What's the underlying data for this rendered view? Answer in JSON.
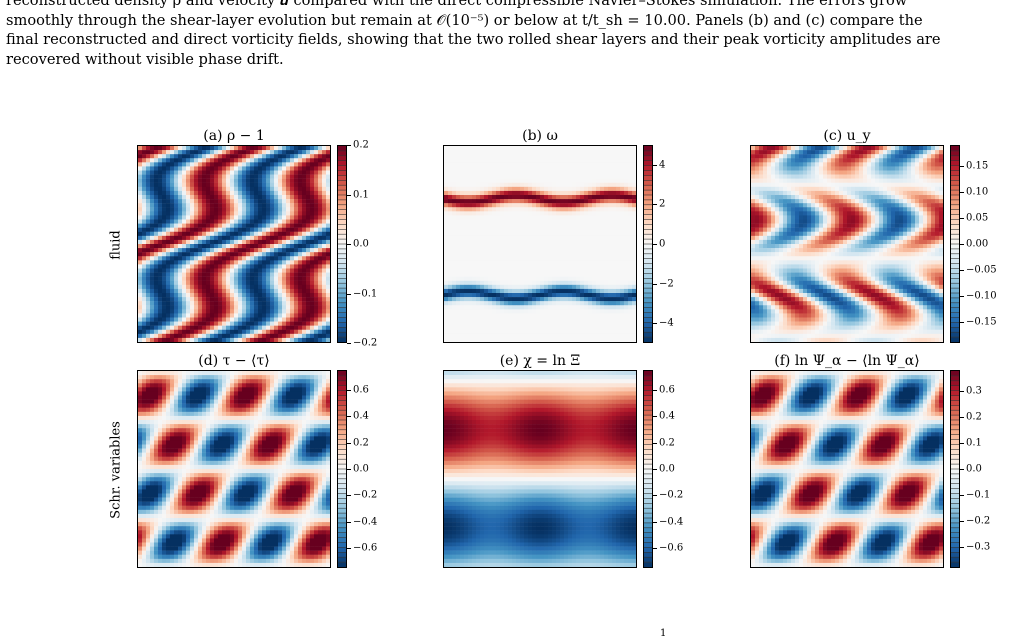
{
  "caption": {
    "lines": [
      "reconstructed density ρ and velocity 𝒖 compared with the direct compressible Navier–Stokes simulation. The errors grow",
      "smoothly through the shear-layer evolution but remain at 𝒪(10⁻⁵) or below at t/t_sh = 10.00. Panels (b) and (c) compare the",
      "final reconstructed and direct vorticity fields, showing that the two rolled shear layers and their peak vorticity amplitudes are",
      "recovered without visible phase drift."
    ]
  },
  "row_labels": [
    "fluid",
    "Schr. variables"
  ],
  "colormap": {
    "name": "RdBu_r",
    "stops": [
      "#053061",
      "#2166ac",
      "#4393c3",
      "#92c5de",
      "#d1e5f0",
      "#f7f7f7",
      "#fddbc7",
      "#f4a582",
      "#d6604d",
      "#b2182b",
      "#67001f"
    ]
  },
  "panels": [
    {
      "title": "(a) ρ − 1",
      "ticks": [
        "0.2",
        "0.1",
        "0.0",
        "−0.1",
        "−0.2"
      ],
      "tick_values": [
        0.2,
        0.1,
        0.0,
        -0.1,
        -0.2
      ],
      "vmin": -0.2,
      "vmax": 0.2,
      "field_kind": "diag_waves"
    },
    {
      "title": "(b) ω",
      "ticks": [
        "4",
        "2",
        "0",
        "−2",
        "−4"
      ],
      "tick_values": [
        4,
        2,
        0,
        -2,
        -4
      ],
      "vmin": -5,
      "vmax": 5,
      "field_kind": "shear_layers"
    },
    {
      "title": "(c) u_y",
      "ticks": [
        "0.15",
        "0.10",
        "0.05",
        "0.00",
        "−0.05",
        "−0.10",
        "−0.15"
      ],
      "tick_values": [
        0.15,
        0.1,
        0.05,
        0.0,
        -0.05,
        -0.1,
        -0.15
      ],
      "vmin": -0.19,
      "vmax": 0.19,
      "field_kind": "wavy"
    },
    {
      "title": "(d) τ − ⟨τ⟩",
      "ticks": [
        "0.6",
        "0.4",
        "0.2",
        "0.0",
        "−0.2",
        "−0.4",
        "−0.6"
      ],
      "tick_values": [
        0.6,
        0.4,
        0.2,
        0.0,
        -0.2,
        -0.4,
        -0.6
      ],
      "vmin": -0.75,
      "vmax": 0.75,
      "field_kind": "checker"
    },
    {
      "title": "(e) χ = ln Ξ",
      "ticks": [
        "0.6",
        "0.4",
        "0.2",
        "0.0",
        "−0.2",
        "−0.4",
        "−0.6"
      ],
      "tick_values": [
        0.6,
        0.4,
        0.2,
        0.0,
        -0.2,
        -0.4,
        -0.6
      ],
      "vmin": -0.75,
      "vmax": 0.75,
      "field_kind": "bands"
    },
    {
      "title": "(f) ln Ψ_α − ⟨ln Ψ_α⟩",
      "ticks": [
        "0.3",
        "0.2",
        "0.1",
        "0.0",
        "−0.1",
        "−0.2",
        "−0.3"
      ],
      "tick_values": [
        0.3,
        0.2,
        0.1,
        0.0,
        -0.1,
        -0.2,
        -0.3
      ],
      "vmin": -0.38,
      "vmax": 0.38,
      "field_kind": "checker"
    }
  ],
  "footer": "1"
}
